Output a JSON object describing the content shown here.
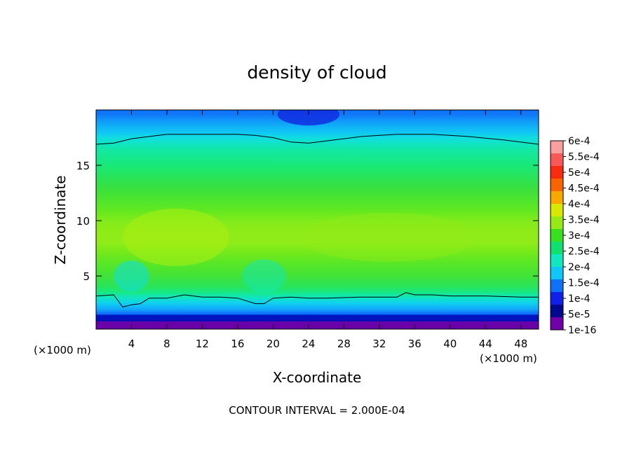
{
  "chart_data": {
    "type": "heatmap",
    "title": "density of cloud",
    "xlabel": "X-coordinate",
    "ylabel": "Z-coordinate",
    "x_unit_left": "(×1000 m)",
    "x_unit_right": "(×1000 m)",
    "footnote": "CONTOUR INTERVAL = 2.000E-04",
    "xlim": [
      0,
      50
    ],
    "ylim": [
      0.2,
      20
    ],
    "xticks": [
      4,
      8,
      12,
      16,
      20,
      24,
      28,
      32,
      36,
      40,
      44,
      48
    ],
    "yticks": [
      5,
      10,
      15
    ],
    "colorbar": {
      "labels": [
        "6e-4",
        "5.5e-4",
        "5e-4",
        "4.5e-4",
        "4e-4",
        "3.5e-4",
        "3e-4",
        "2.5e-4",
        "2e-4",
        "1.5e-4",
        "1e-4",
        "5e-5",
        "1e-16"
      ],
      "colors": [
        "#f8a0a0",
        "#f85858",
        "#f82a10",
        "#f86400",
        "#f8a800",
        "#d8e800",
        "#98e818",
        "#38e020",
        "#10e070",
        "#10e8c0",
        "#10c8f8",
        "#1070f8",
        "#1020e8",
        "#000890",
        "#7000a8"
      ]
    },
    "contour_levels": [
      0,
      0.0002
    ],
    "profile": {
      "description_z": [
        0.5,
        1.0,
        1.5,
        2.0,
        2.5,
        3.0,
        3.5,
        4.0,
        5.0,
        6.0,
        7.0,
        8.0,
        9.0,
        10.0,
        11.0,
        12.0,
        13.0,
        14.0,
        15.0,
        16.0,
        16.5,
        17.0,
        17.5,
        18.0,
        18.5,
        19.0,
        19.5,
        20.0
      ],
      "density": [
        1e-05,
        3e-05,
        8e-05,
        0.00013,
        0.00017,
        0.00021,
        0.00025,
        0.00028,
        0.00031,
        0.00033,
        0.00035,
        0.00037,
        0.00037,
        0.00036,
        0.00034,
        0.00032,
        0.0003,
        0.00028,
        0.00026,
        0.00024,
        0.00023,
        0.00021,
        0.00019,
        0.00016,
        0.00014,
        0.00012,
        0.0001,
        9e-05
      ]
    },
    "contour_upper_z": {
      "x": [
        0,
        2,
        4,
        8,
        12,
        16,
        18,
        20,
        22,
        24,
        26,
        30,
        34,
        36,
        38,
        42,
        46,
        50
      ],
      "z": [
        16.9,
        17.0,
        17.4,
        17.8,
        17.8,
        17.8,
        17.7,
        17.5,
        17.1,
        17.0,
        17.2,
        17.6,
        17.8,
        17.8,
        17.8,
        17.6,
        17.3,
        16.9
      ]
    },
    "contour_lower_z": {
      "x": [
        0,
        2,
        3,
        4,
        5,
        6,
        8,
        10,
        12,
        14,
        16,
        18,
        19,
        20,
        22,
        24,
        26,
        30,
        34,
        35,
        36,
        38,
        40,
        44,
        48,
        50
      ],
      "z": [
        3.2,
        3.3,
        2.2,
        2.4,
        2.5,
        3.0,
        3.0,
        3.3,
        3.1,
        3.1,
        3.0,
        2.5,
        2.5,
        3.0,
        3.1,
        3.0,
        3.0,
        3.1,
        3.1,
        3.5,
        3.3,
        3.3,
        3.2,
        3.2,
        3.1,
        3.1
      ]
    }
  }
}
